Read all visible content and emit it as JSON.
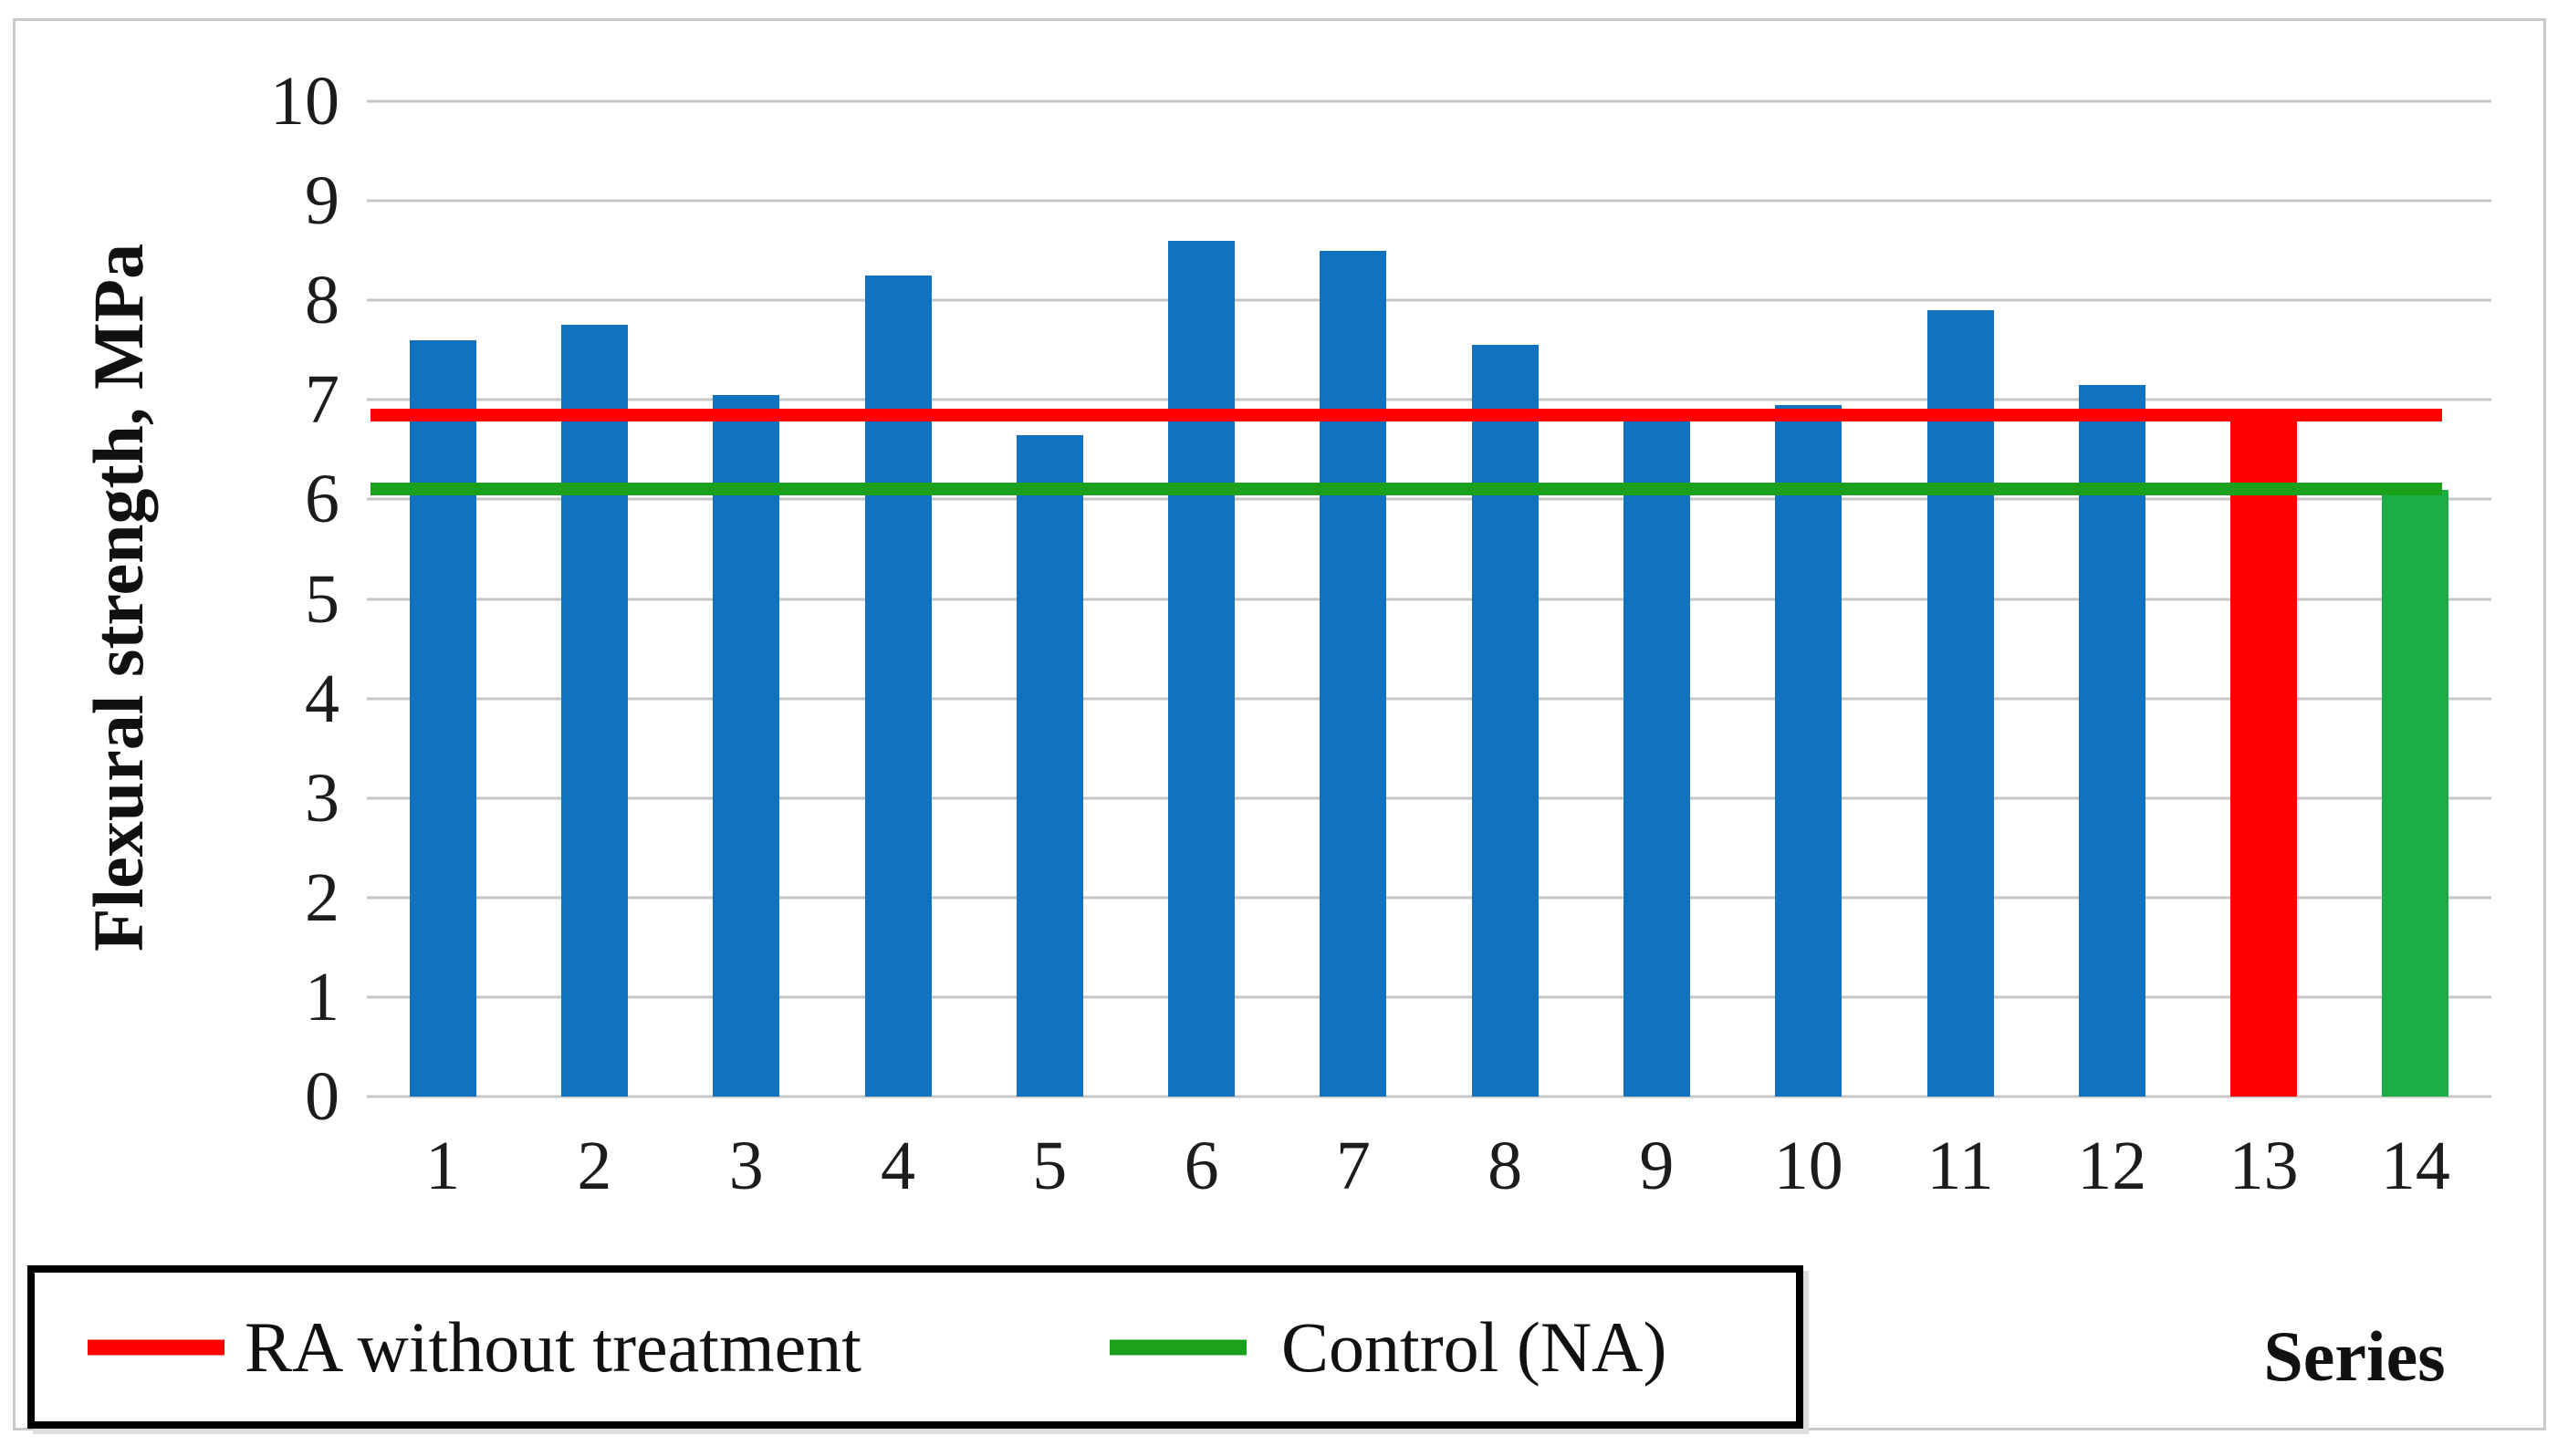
{
  "figure_labels": {
    "ylabel": "Flexural strength, MPa",
    "xlabel": "Series"
  },
  "chart_data": {
    "type": "bar",
    "title": "",
    "categories": [
      "1",
      "2",
      "3",
      "4",
      "5",
      "6",
      "7",
      "8",
      "9",
      "10",
      "11",
      "12",
      "13",
      "14"
    ],
    "values": [
      7.6,
      7.75,
      7.05,
      8.25,
      6.65,
      8.6,
      8.5,
      7.55,
      6.8,
      6.95,
      7.9,
      7.15,
      6.85,
      6.1
    ],
    "bar_colors": [
      "#1272be",
      "#1272be",
      "#1272be",
      "#1272be",
      "#1272be",
      "#1272be",
      "#1272be",
      "#1272be",
      "#1272be",
      "#1272be",
      "#1272be",
      "#1272be",
      "#ff0000",
      "#1cad45"
    ],
    "reference_lines": [
      {
        "label": "RA without treatment",
        "value": 6.85,
        "color": "#ff0000"
      },
      {
        "label": "Control (NA)",
        "value": 6.1,
        "color": "#1ca11c"
      }
    ],
    "xlabel": "Series",
    "ylabel": "Flexural strength, MPa",
    "ylim": [
      0,
      10
    ],
    "ytick_interval": 1,
    "grid": true,
    "legend_position": "bottom-left"
  },
  "legend": {
    "items": [
      {
        "label": "RA without treatment",
        "color": "#ff0000"
      },
      {
        "label": "Control (NA)",
        "color": "#1ca11c"
      }
    ]
  },
  "colors": {
    "bar_blue": "#1272be",
    "bar_red": "#ff0000",
    "bar_green": "#1cad45",
    "line_red": "#ff0000",
    "line_green": "#1ca11c",
    "gridline": "#c6c6c6",
    "figure_border": "#c9c9c9",
    "legend_border": "#000000",
    "text": "#111111"
  }
}
